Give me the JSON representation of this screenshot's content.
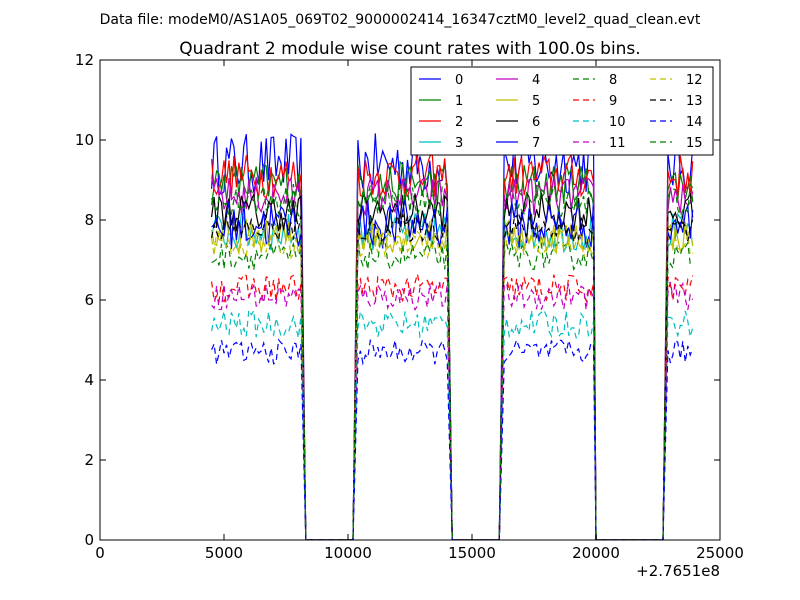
{
  "chart_data": {
    "type": "line",
    "suptitle": "Data file: modeM0/AS1A05_069T02_9000002414_16347cztM0_level2_quad_clean.evt",
    "title": "Quadrant 2 module wise count rates with 100.0s bins.",
    "xlabel": "",
    "ylabel": "",
    "x_offset_label": "+2.7651e8",
    "xlim": [
      0,
      25000
    ],
    "ylim": [
      0,
      12
    ],
    "xticks": [
      0,
      5000,
      10000,
      15000,
      20000,
      25000
    ],
    "xtick_labels": [
      "0",
      "5000",
      "10000",
      "15000",
      "20000",
      "25000"
    ],
    "yticks": [
      0,
      2,
      4,
      6,
      8,
      10,
      12
    ],
    "ytick_labels": [
      "0",
      "2",
      "4",
      "6",
      "8",
      "10",
      "12"
    ],
    "grid": false,
    "legend_placement": "top-right",
    "legend_columns": 4,
    "segments": [
      {
        "x_start": 4500,
        "x_end": 8100,
        "rise_from": null,
        "fall_to": 8300
      },
      {
        "x_start": 10400,
        "x_end": 14000,
        "rise_from": 10200,
        "fall_to": 14200
      },
      {
        "x_start": 16300,
        "x_end": 19900,
        "rise_from": 16100,
        "fall_to": 20000
      },
      {
        "x_start": 22900,
        "x_end": 23900,
        "rise_from": 22700,
        "fall_to": null
      }
    ],
    "bin_width": 100,
    "series": [
      {
        "name": "0",
        "color": "#0000ff",
        "dash": "solid",
        "level": 9.4,
        "noise": 0.55
      },
      {
        "name": "1",
        "color": "#008000",
        "dash": "solid",
        "level": 8.9,
        "noise": 0.4
      },
      {
        "name": "2",
        "color": "#ff0000",
        "dash": "solid",
        "level": 9.1,
        "noise": 0.4
      },
      {
        "name": "3",
        "color": "#00bfbf",
        "dash": "solid",
        "level": 7.7,
        "noise": 0.35
      },
      {
        "name": "4",
        "color": "#bf00bf",
        "dash": "solid",
        "level": 8.6,
        "noise": 0.35
      },
      {
        "name": "5",
        "color": "#bfbf00",
        "dash": "solid",
        "level": 7.6,
        "noise": 0.3
      },
      {
        "name": "6",
        "color": "#000000",
        "dash": "solid",
        "level": 8.2,
        "noise": 0.35
      },
      {
        "name": "7",
        "color": "#0000ff",
        "dash": "solid",
        "level": 7.9,
        "noise": 0.45
      },
      {
        "name": "8",
        "color": "#008000",
        "dash": "dashed",
        "level": 7.1,
        "noise": 0.25
      },
      {
        "name": "9",
        "color": "#ff0000",
        "dash": "dashed",
        "level": 6.3,
        "noise": 0.25
      },
      {
        "name": "10",
        "color": "#00bfbf",
        "dash": "dashed",
        "level": 5.4,
        "noise": 0.25
      },
      {
        "name": "11",
        "color": "#bf00bf",
        "dash": "dashed",
        "level": 6.1,
        "noise": 0.25
      },
      {
        "name": "12",
        "color": "#bfbf00",
        "dash": "dashed",
        "level": 7.4,
        "noise": 0.25
      },
      {
        "name": "13",
        "color": "#000000",
        "dash": "dashed",
        "level": 7.8,
        "noise": 0.25
      },
      {
        "name": "14",
        "color": "#0000ff",
        "dash": "dashed",
        "level": 4.7,
        "noise": 0.22
      },
      {
        "name": "15",
        "color": "#008000",
        "dash": "dashed",
        "level": 8.5,
        "noise": 0.3
      }
    ]
  }
}
